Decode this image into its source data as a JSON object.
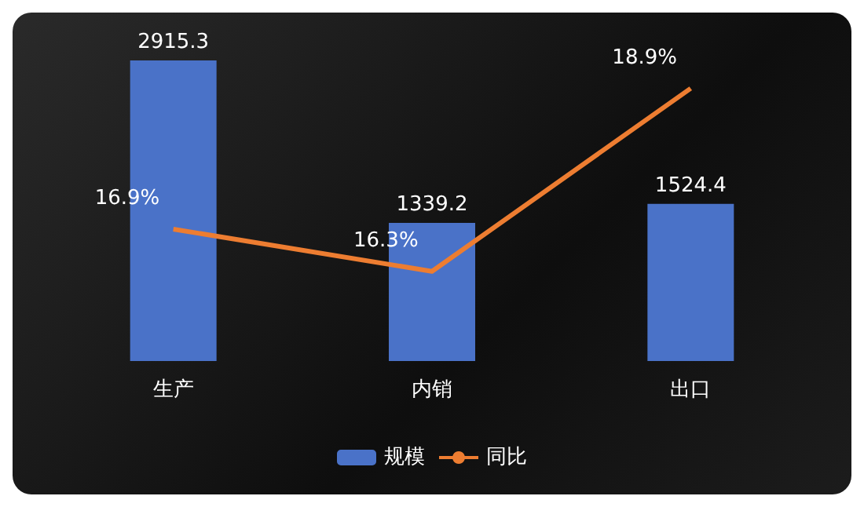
{
  "chart_data": {
    "type": "bar",
    "categories": [
      "生产",
      "内销",
      "出口"
    ],
    "series": [
      {
        "name": "规模",
        "type": "bar",
        "color": "#4a72c8",
        "values": [
          2915.3,
          1339.2,
          1524.4
        ],
        "value_labels": [
          "2915.3",
          "1339.2",
          "1524.4"
        ]
      },
      {
        "name": "同比",
        "type": "line",
        "axis": "y2",
        "color": "#ed7d31",
        "values": [
          16.9,
          16.3,
          18.9
        ],
        "value_labels": [
          "16.9%",
          "16.3%",
          "18.9%"
        ]
      }
    ],
    "legend": "bottom",
    "grid": false,
    "marker": "none"
  }
}
